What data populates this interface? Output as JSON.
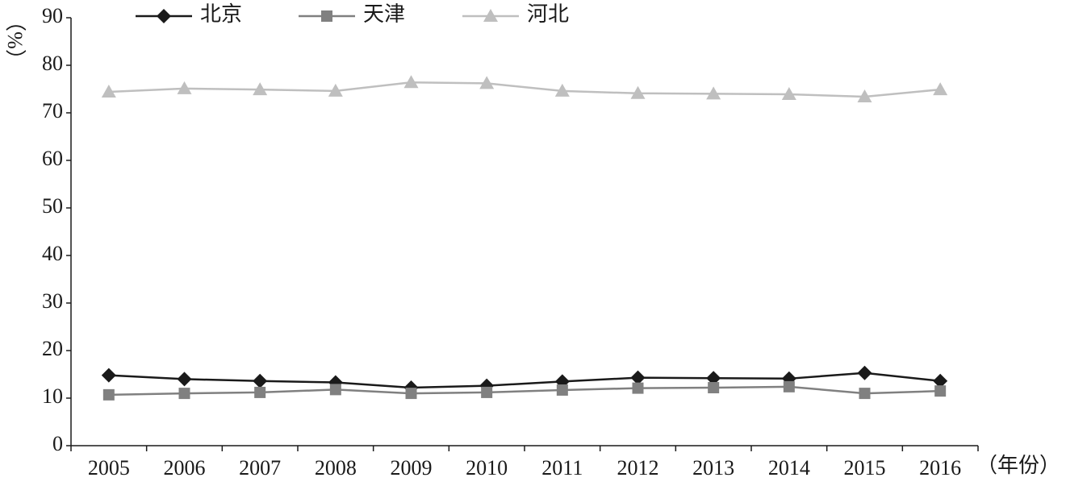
{
  "chart_data": {
    "type": "line",
    "y_label": "（%）",
    "x_label": "（年份）",
    "categories": [
      "2005",
      "2006",
      "2007",
      "2008",
      "2009",
      "2010",
      "2011",
      "2012",
      "2013",
      "2014",
      "2015",
      "2016"
    ],
    "series": [
      {
        "name": "北京",
        "color": "#1a1a1a",
        "marker": "diamond",
        "values": [
          14.8,
          14.0,
          13.6,
          13.3,
          12.2,
          12.6,
          13.5,
          14.3,
          14.2,
          14.1,
          15.3,
          13.6
        ]
      },
      {
        "name": "天津",
        "color": "#808080",
        "marker": "square",
        "values": [
          10.7,
          11.0,
          11.2,
          11.8,
          11.0,
          11.2,
          11.7,
          12.1,
          12.2,
          12.4,
          11.0,
          11.5
        ]
      },
      {
        "name": "河北",
        "color": "#bfbfbf",
        "marker": "triangle",
        "values": [
          74.4,
          75.1,
          74.9,
          74.6,
          76.4,
          76.2,
          74.6,
          74.1,
          74.0,
          73.9,
          73.4,
          74.9
        ]
      }
    ],
    "ylim": [
      0,
      90
    ],
    "yticks": [
      0,
      10,
      20,
      30,
      40,
      50,
      60,
      70,
      80,
      90
    ],
    "grid": false,
    "legend": "top"
  }
}
